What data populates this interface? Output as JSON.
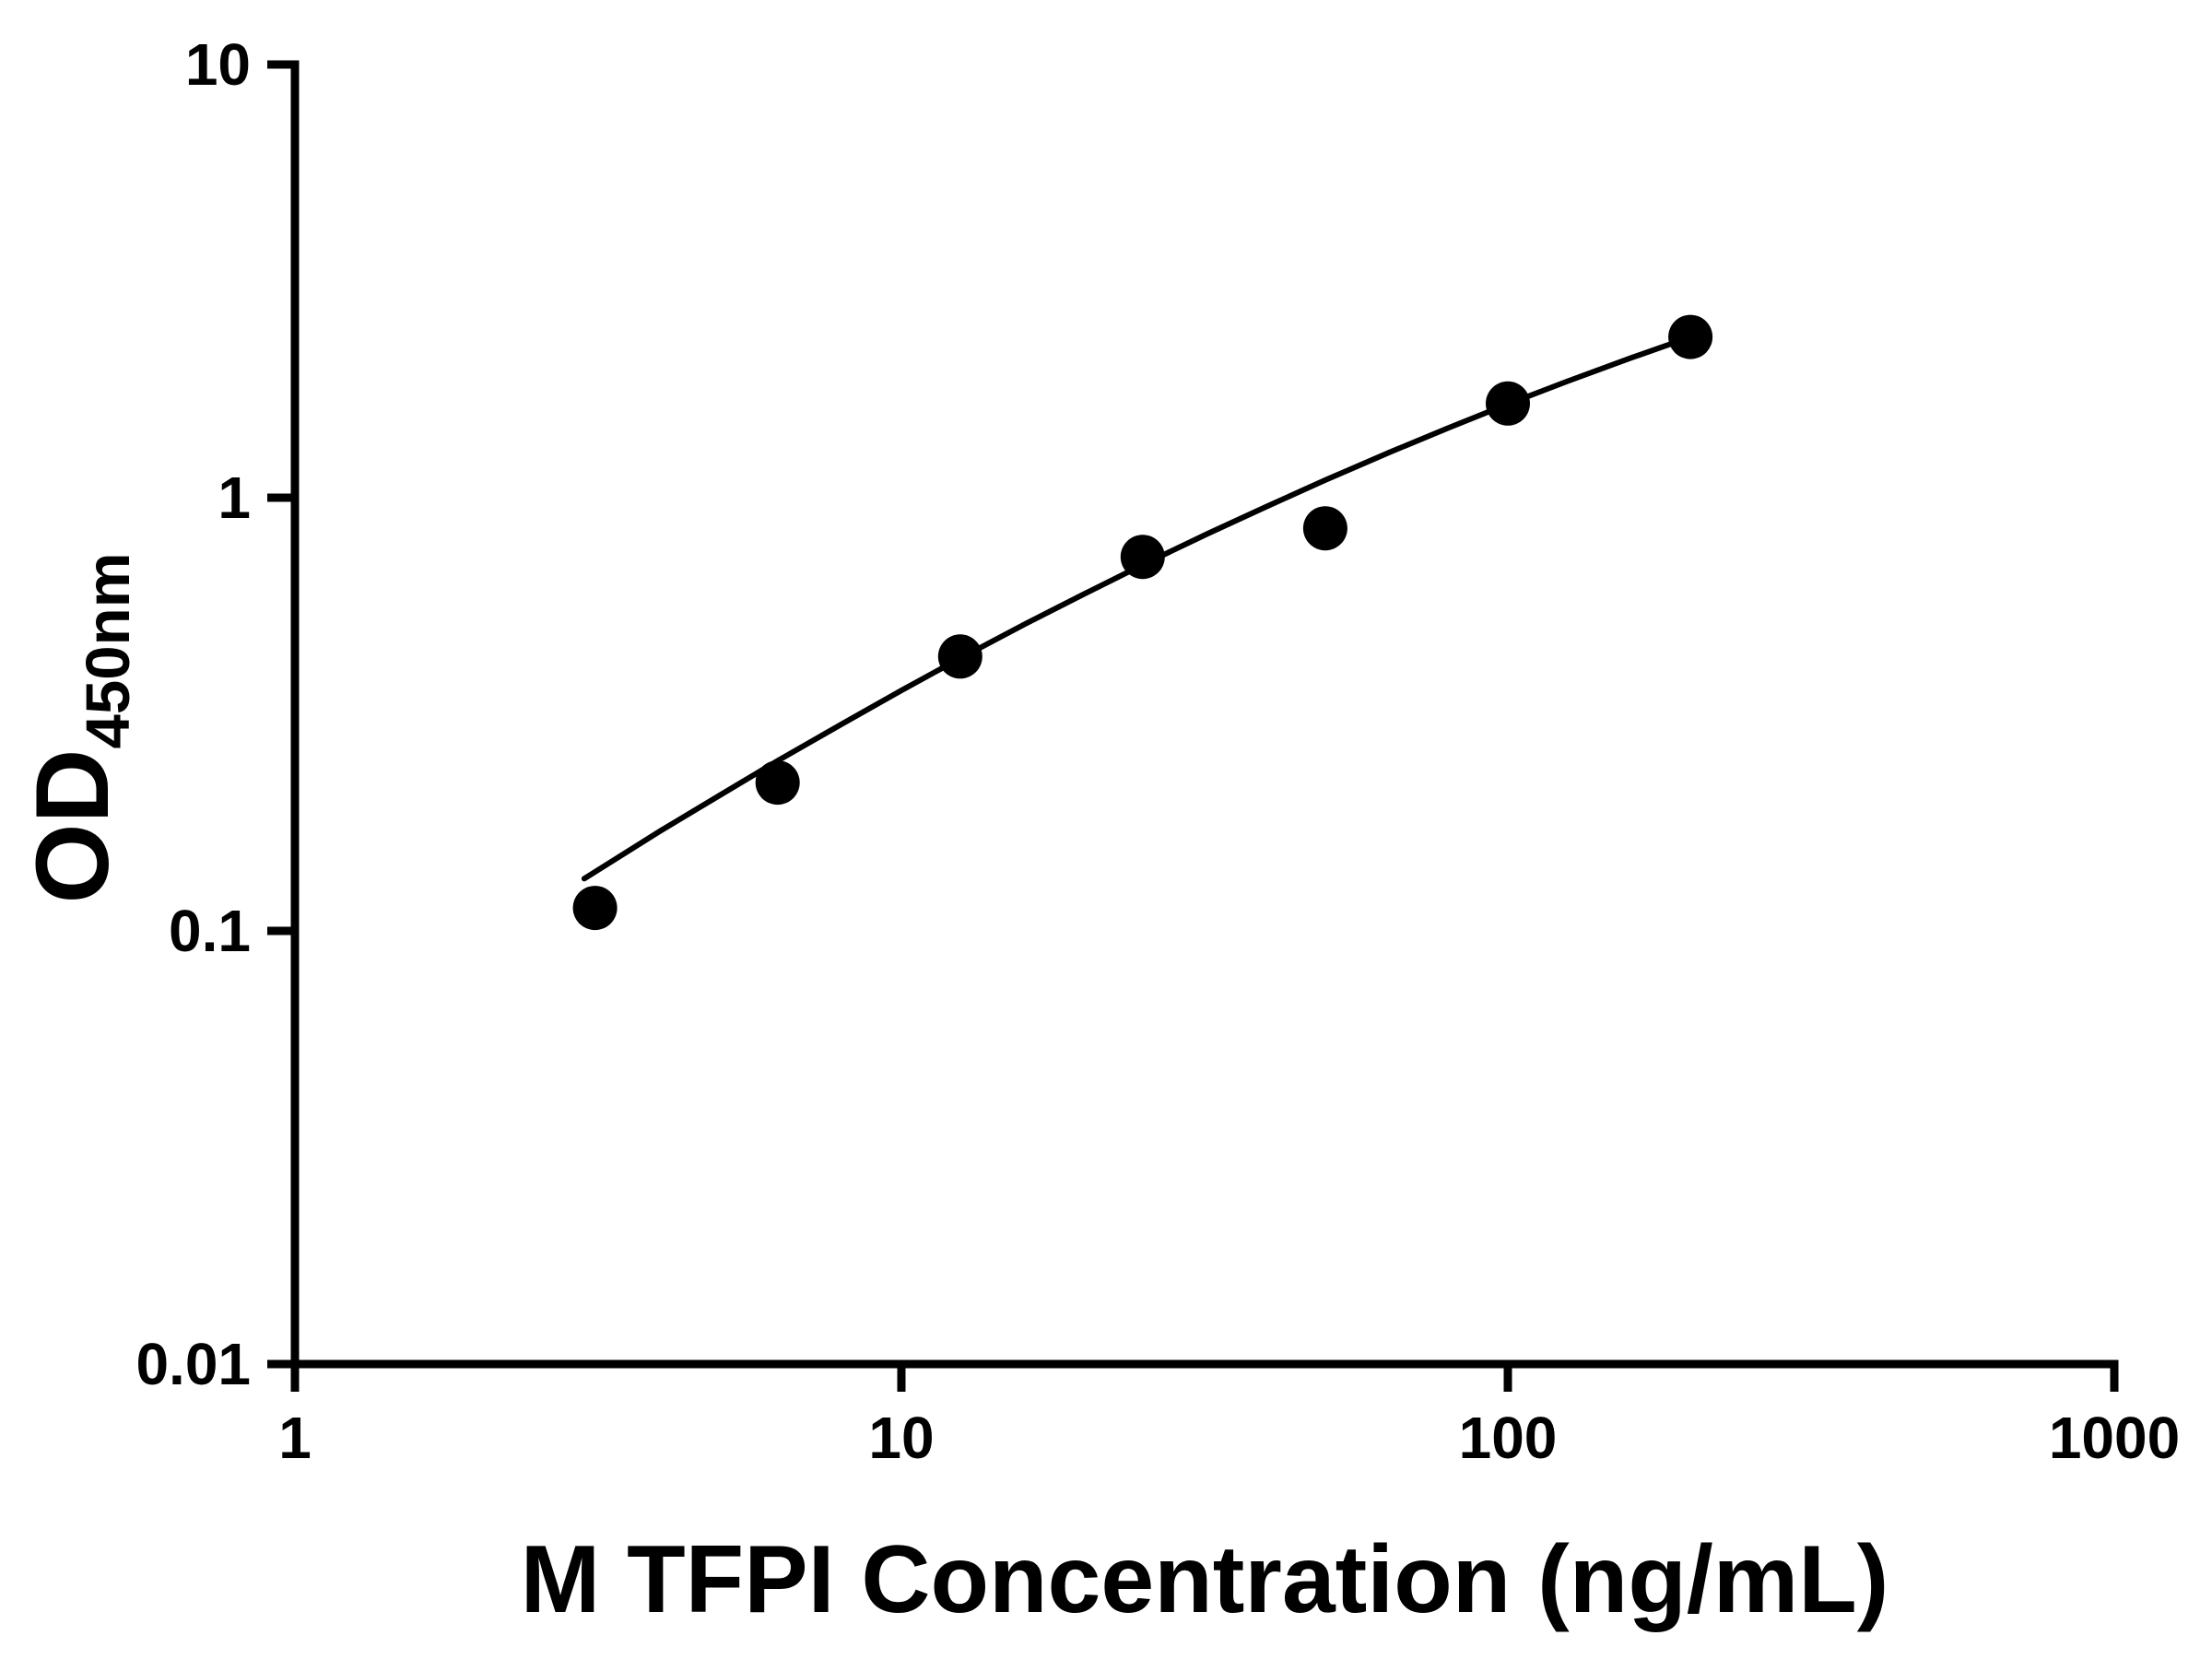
{
  "page": {
    "background": "#ffffff"
  },
  "chart_data": {
    "type": "scatter",
    "title": "",
    "xlabel": "M TFPI Concentration (ng/mL)",
    "ylabel": "OD450nm",
    "ylabel_main": "OD",
    "ylabel_sub": "450nm",
    "x_scale": "log",
    "y_scale": "log",
    "xlim": [
      1,
      1000
    ],
    "ylim": [
      0.01,
      10
    ],
    "x_ticks": [
      1,
      10,
      100,
      1000
    ],
    "x_tick_labels": [
      "1",
      "10",
      "100",
      "1000"
    ],
    "y_ticks": [
      0.01,
      0.1,
      1,
      10
    ],
    "y_tick_labels": [
      "0.01",
      "0.1",
      "1",
      "10"
    ],
    "grid": false,
    "legend": false,
    "axis_color": "#000000",
    "line_color": "#000000",
    "marker_color": "#000000",
    "marker_radius": 24,
    "series": [
      {
        "points": [
          [
            3.125,
            0.113
          ],
          [
            6.25,
            0.22
          ],
          [
            12.5,
            0.43
          ],
          [
            25,
            0.73
          ],
          [
            50,
            0.85
          ],
          [
            100,
            1.65
          ],
          [
            200,
            2.35
          ]
        ]
      }
    ],
    "fit_curve": [
      [
        3,
        0.132
      ],
      [
        4,
        0.17
      ],
      [
        5,
        0.205
      ],
      [
        6.25,
        0.247
      ],
      [
        8,
        0.301
      ],
      [
        10,
        0.359
      ],
      [
        12.5,
        0.426
      ],
      [
        16,
        0.511
      ],
      [
        20,
        0.599
      ],
      [
        25,
        0.7
      ],
      [
        32,
        0.826
      ],
      [
        40,
        0.954
      ],
      [
        50,
        1.098
      ],
      [
        64,
        1.275
      ],
      [
        80,
        1.451
      ],
      [
        100,
        1.645
      ],
      [
        125,
        1.854
      ],
      [
        160,
        2.105
      ],
      [
        200,
        2.349
      ]
    ]
  }
}
